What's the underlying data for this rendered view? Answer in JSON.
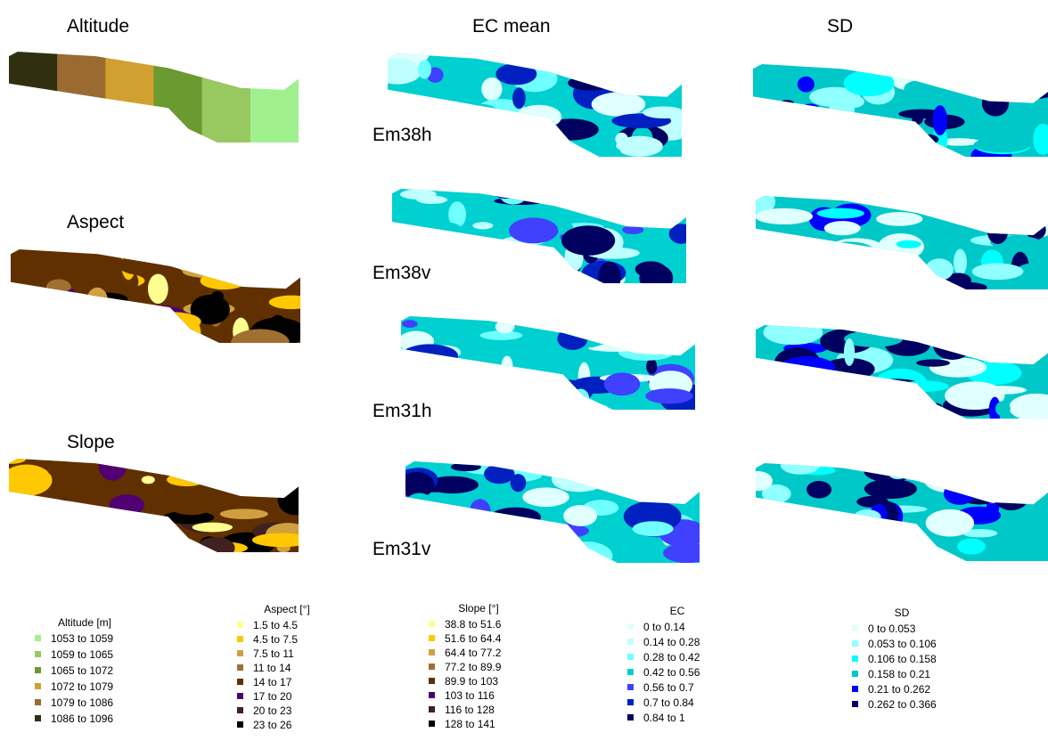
{
  "titles": {
    "altitude": "Altitude",
    "ec_mean": "EC mean",
    "sd": "SD",
    "aspect": "Aspect",
    "slope": "Slope"
  },
  "rows": [
    "Em38h",
    "Em38v",
    "Em31h",
    "Em31v"
  ],
  "legends": [
    {
      "title": "Altitude [m]",
      "items": [
        {
          "label": "1053  to  1059",
          "color": "#a0f090"
        },
        {
          "label": "1059  to  1065",
          "color": "#98c860"
        },
        {
          "label": "1065  to  1072",
          "color": "#6a9a30"
        },
        {
          "label": "1072  to  1079",
          "color": "#d0a030"
        },
        {
          "label": "1079  to  1086",
          "color": "#9a6a30"
        },
        {
          "label": "1086  to  1096",
          "color": "#303010"
        }
      ]
    },
    {
      "title": "Aspect [°]",
      "items": [
        {
          "label": "1.5  to  4.5",
          "color": "#ffff90"
        },
        {
          "label": "4.5  to  7.5",
          "color": "#ffc800"
        },
        {
          "label": "7.5  to  11",
          "color": "#d0a040"
        },
        {
          "label": "11  to  14",
          "color": "#a07030"
        },
        {
          "label": "14  to  17",
          "color": "#603000"
        },
        {
          "label": "17  to  20",
          "color": "#500070"
        },
        {
          "label": "20  to  23",
          "color": "#402020"
        },
        {
          "label": "23  to  26",
          "color": "#000000"
        }
      ]
    },
    {
      "title": "Slope [°]",
      "items": [
        {
          "label": "38.8  to  51.6",
          "color": "#ffff90"
        },
        {
          "label": "51.6  to  64.4",
          "color": "#ffc800"
        },
        {
          "label": "64.4  to  77.2",
          "color": "#d0a040"
        },
        {
          "label": "77.2  to  89.9",
          "color": "#a07030"
        },
        {
          "label": "89.9  to  103",
          "color": "#603000"
        },
        {
          "label": "103  to  116",
          "color": "#500070"
        },
        {
          "label": "116  to  128",
          "color": "#402020"
        },
        {
          "label": "128  to  141",
          "color": "#000000"
        }
      ]
    },
    {
      "title": "EC",
      "items": [
        {
          "label": "0  to  0.14",
          "color": "#e0ffff"
        },
        {
          "label": "0.14  to  0.28",
          "color": "#c0ffff"
        },
        {
          "label": "0.28  to  0.42",
          "color": "#70ffff"
        },
        {
          "label": "0.42  to  0.56",
          "color": "#00d0d0"
        },
        {
          "label": "0.56  to  0.7",
          "color": "#4040ff"
        },
        {
          "label": "0.7  to  0.84",
          "color": "#0020c0"
        },
        {
          "label": "0.84  to  1",
          "color": "#000060"
        }
      ]
    },
    {
      "title": "SD",
      "items": [
        {
          "label": "0  to  0.053",
          "color": "#e0ffff"
        },
        {
          "label": "0.053  to  0.106",
          "color": "#90ffff"
        },
        {
          "label": "0.106  to  0.158",
          "color": "#00ffff"
        },
        {
          "label": "0.158  to  0.21",
          "color": "#00c8c8"
        },
        {
          "label": "0.21  to  0.262",
          "color": "#0000ff"
        },
        {
          "label": "0.262  to  0.366",
          "color": "#000060"
        }
      ]
    }
  ]
}
